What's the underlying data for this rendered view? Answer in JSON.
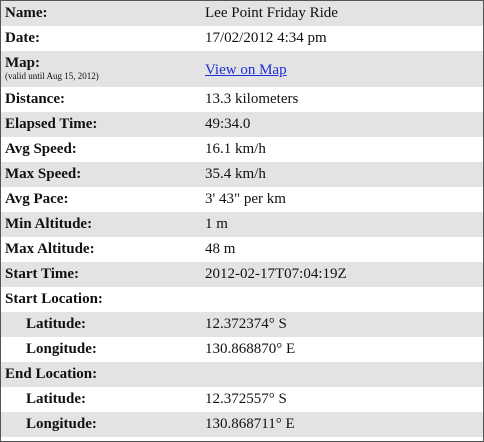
{
  "rows": [
    {
      "label": "Name:",
      "value": "Lee Point Friday Ride"
    },
    {
      "label": "Date:",
      "value": "17/02/2012 4:34 pm"
    },
    {
      "label": "Map:",
      "note": "(valid until Aug 15, 2012)",
      "value": "View on Map"
    },
    {
      "label": "Distance:",
      "value": "13.3 kilometers"
    },
    {
      "label": "Elapsed Time:",
      "value": "49:34.0"
    },
    {
      "label": "Avg Speed:",
      "value": "16.1 km/h"
    },
    {
      "label": "Max Speed:",
      "value": "35.4 km/h"
    },
    {
      "label": "Avg Pace:",
      "value": "3' 43\" per km"
    },
    {
      "label": "Min Altitude:",
      "value": "1 m"
    },
    {
      "label": "Max Altitude:",
      "value": "48 m"
    },
    {
      "label": "Start Time:",
      "value": "2012-02-17T07:04:19Z"
    },
    {
      "label": "Start Location:",
      "value": ""
    },
    {
      "label": "Latitude:",
      "value": "12.372374° S"
    },
    {
      "label": "Longitude:",
      "value": "130.868870° E"
    },
    {
      "label": "End Location:",
      "value": ""
    },
    {
      "label": "Latitude:",
      "value": "12.372557° S"
    },
    {
      "label": "Longitude:",
      "value": "130.868711° E"
    }
  ],
  "colors": {
    "row_shade": "#e3e3e3",
    "border": "#555555",
    "link": "#1a2fd6"
  }
}
